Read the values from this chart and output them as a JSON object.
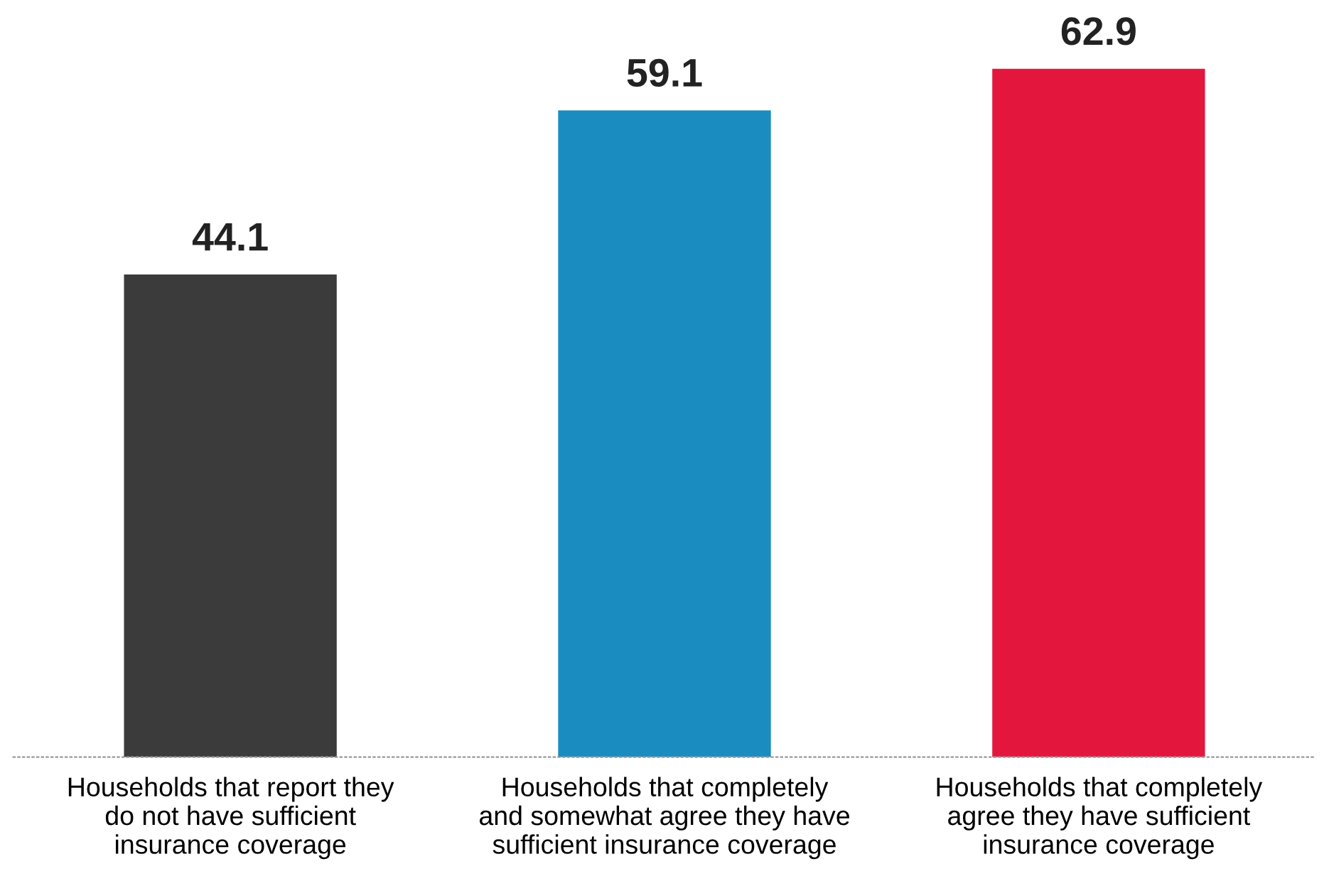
{
  "chart_data": {
    "type": "bar",
    "categories": [
      "Households that report they\ndo not have sufficient\ninsurance coverage",
      "Households that completely\nand somewhat agree they have\nsufficient insurance coverage",
      "Households that completely\nagree they have sufficient\ninsurance coverage"
    ],
    "values": [
      44.1,
      59.1,
      62.9
    ],
    "colors": [
      "#3b3b3b",
      "#1b8cc0",
      "#e3173e"
    ],
    "data_labels": true,
    "grid": false,
    "legend": false
  }
}
